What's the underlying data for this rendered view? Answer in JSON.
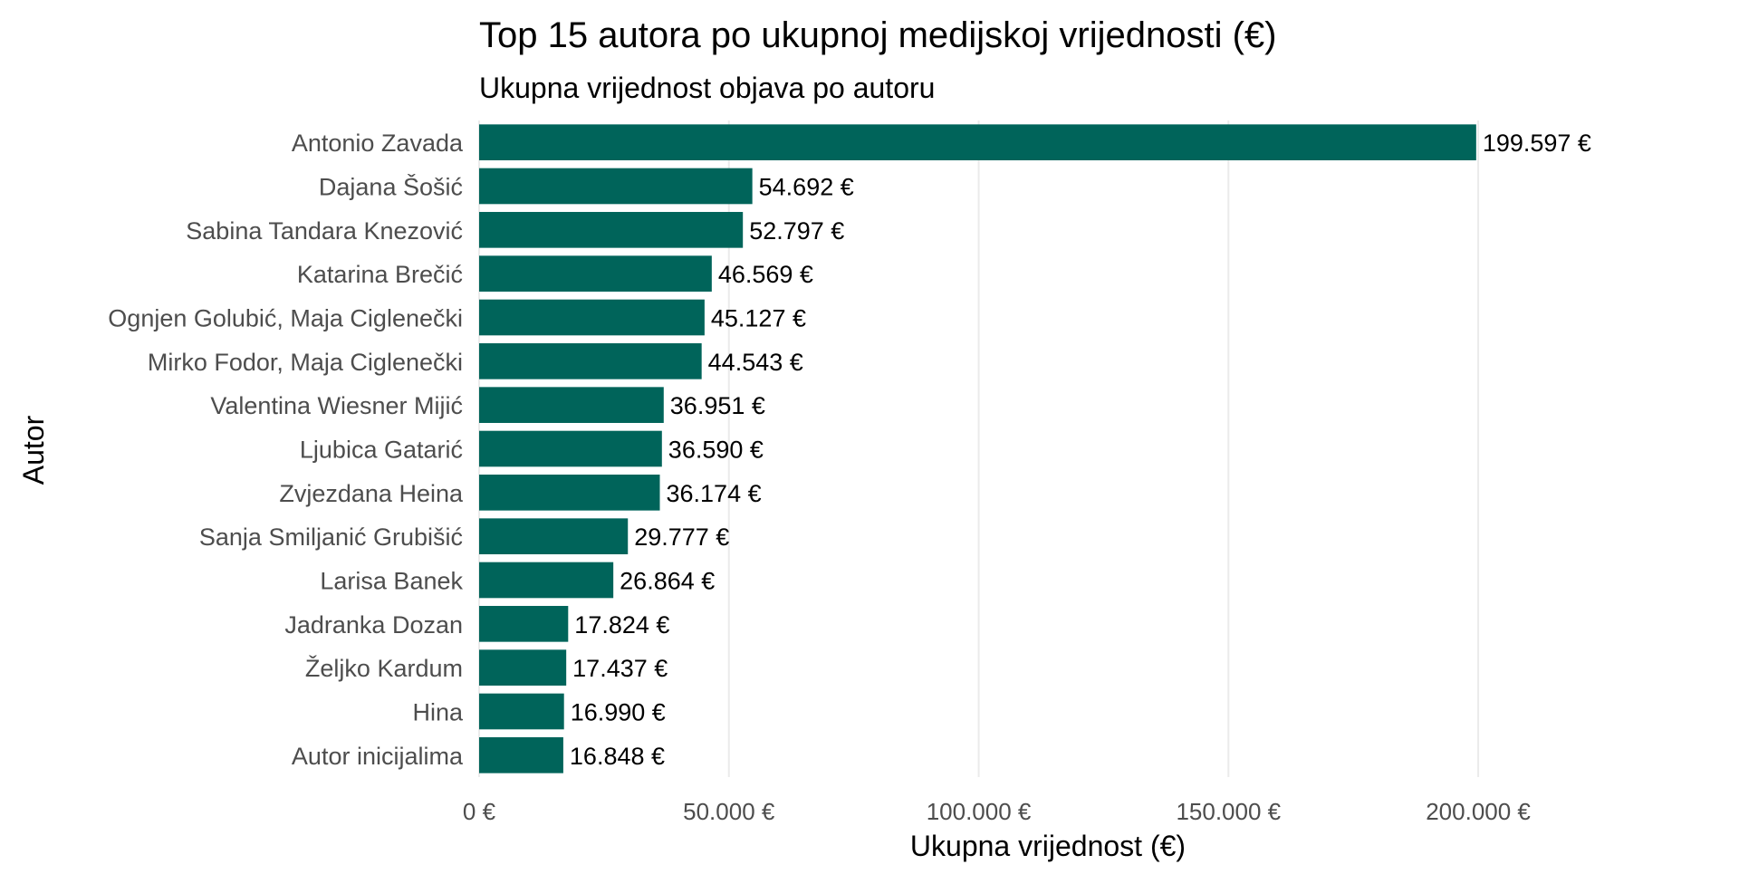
{
  "chart_data": {
    "type": "bar",
    "orientation": "horizontal",
    "title": "Top 15 autora po ukupnoj medijskoj vrijednosti (€)",
    "subtitle": "Ukupna vrijednost objava po autoru",
    "xlabel": "Ukupna vrijednost (€)",
    "ylabel": "Autor",
    "xlim": [
      0,
      229000
    ],
    "grid": true,
    "legend": "none",
    "categories": [
      "Antonio Zavada",
      "Dajana Šošić",
      "Sabina Tandara Knezović",
      "Katarina Brečić",
      "Ognjen Golubić,  Maja Ciglenečki",
      "Mirko Fodor,  Maja Ciglenečki",
      "Valentina Wiesner Mijić",
      "Ljubica Gatarić",
      "Zvjezdana Heina",
      "Sanja Smiljanić Grubišić",
      "Larisa Banek",
      "Jadranka Dozan",
      "Željko Kardum",
      "Hina",
      "Autor inicijalima"
    ],
    "values": [
      199597,
      54692,
      52797,
      46569,
      45127,
      44543,
      36951,
      36590,
      36174,
      29777,
      26864,
      17824,
      17437,
      16990,
      16848
    ],
    "data_labels": [
      "199.597 €",
      "54.692 €",
      "52.797 €",
      "46.569 €",
      "45.127 €",
      "44.543 €",
      "36.951 €",
      "36.590 €",
      "36.174 €",
      "29.777 €",
      "26.864 €",
      "17.824 €",
      "17.437 €",
      "16.990 €",
      "16.848 €"
    ],
    "x_ticks": [
      0,
      50000,
      100000,
      150000,
      200000
    ],
    "x_tick_labels": [
      "0 €",
      "50.000 €",
      "100.000 €",
      "150.000 €",
      "200.000 €"
    ],
    "colors": {
      "bar": "#00645A",
      "grid": "#EBEBEB",
      "text": "#000000",
      "axis_text": "#4D4D4D"
    }
  }
}
